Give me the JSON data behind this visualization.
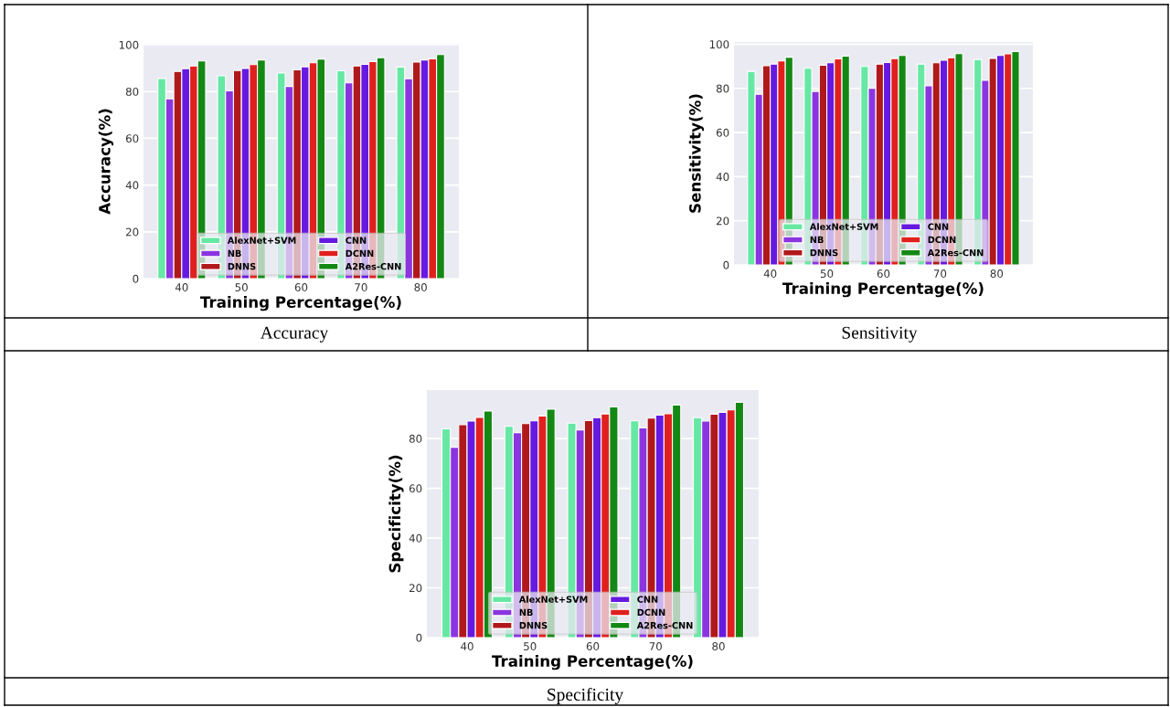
{
  "chart_data": [
    {
      "type": "bar",
      "categories": [
        "40",
        "50",
        "60",
        "70",
        "80"
      ],
      "xlabel": "Training Percentage(%)",
      "ylabel": "Accuracy(%)",
      "ylim": [
        0,
        100.4
      ],
      "yticks": [
        0,
        20,
        40,
        60,
        80,
        100
      ],
      "grid": "y",
      "legend": "bottom",
      "annotations": [
        "Accuracy"
      ],
      "series": [
        {
          "name": "AlexNet+SVM",
          "color": "#66e8a4",
          "values": [
            85.6,
            86.7,
            87.9,
            88.9,
            90.5
          ]
        },
        {
          "name": "NB",
          "color": "#8b35e0",
          "values": [
            76.9,
            80.3,
            82.2,
            83.7,
            85.5
          ]
        },
        {
          "name": "DNNS",
          "color": "#b0191b",
          "values": [
            88.6,
            89.0,
            89.3,
            90.9,
            92.6
          ]
        },
        {
          "name": "CNN",
          "color": "#6619e0",
          "values": [
            89.8,
            89.9,
            90.6,
            91.6,
            93.5
          ]
        },
        {
          "name": "DCNN",
          "color": "#e0201e",
          "values": [
            90.9,
            91.5,
            92.3,
            92.8,
            94.0
          ]
        },
        {
          "name": "A2Res-CNN",
          "color": "#148814",
          "values": [
            93.1,
            93.5,
            93.9,
            94.5,
            95.8
          ]
        }
      ]
    },
    {
      "type": "bar",
      "categories": [
        "40",
        "50",
        "60",
        "70",
        "80"
      ],
      "xlabel": "Training Percentage(%)",
      "ylabel": "Sensitivity(%)",
      "ylim": [
        0,
        101
      ],
      "yticks": [
        0,
        20,
        40,
        60,
        80,
        100
      ],
      "grid": "y",
      "legend": "bottom",
      "annotations": [
        "Sensitivity"
      ],
      "series": [
        {
          "name": "AlexNet+SVM",
          "color": "#66e8a4",
          "values": [
            87.7,
            89.1,
            89.9,
            91.0,
            93.1
          ]
        },
        {
          "name": "NB",
          "color": "#8b35e0",
          "values": [
            77.3,
            78.6,
            80.0,
            81.2,
            83.6
          ]
        },
        {
          "name": "DNNS",
          "color": "#b0191b",
          "values": [
            90.3,
            90.5,
            91.0,
            91.6,
            93.6
          ]
        },
        {
          "name": "CNN",
          "color": "#6619e0",
          "values": [
            91.0,
            91.6,
            91.7,
            92.7,
            94.9
          ]
        },
        {
          "name": "DCNN",
          "color": "#e0201e",
          "values": [
            92.4,
            93.4,
            93.5,
            93.9,
            95.6
          ]
        },
        {
          "name": "A2Res-CNN",
          "color": "#148814",
          "values": [
            94.1,
            94.6,
            94.9,
            95.7,
            96.7
          ]
        }
      ]
    },
    {
      "type": "bar",
      "categories": [
        "40",
        "50",
        "60",
        "70",
        "80"
      ],
      "xlabel": "Training Percentage(%)",
      "ylabel": "Specificity(%)",
      "ylim": [
        0,
        99.5
      ],
      "yticks": [
        0,
        20,
        40,
        60,
        80
      ],
      "grid": "y",
      "legend": "bottom",
      "annotations": [
        "Specificity"
      ],
      "series": [
        {
          "name": "AlexNet+SVM",
          "color": "#66e8a4",
          "values": [
            83.9,
            84.9,
            86.2,
            87.1,
            88.4
          ]
        },
        {
          "name": "NB",
          "color": "#8b35e0",
          "values": [
            76.5,
            82.4,
            83.5,
            84.3,
            87.0
          ]
        },
        {
          "name": "DNNS",
          "color": "#b0191b",
          "values": [
            85.6,
            86.0,
            87.2,
            88.2,
            89.8
          ]
        },
        {
          "name": "CNN",
          "color": "#6619e0",
          "values": [
            87.0,
            87.1,
            88.4,
            89.4,
            90.5
          ]
        },
        {
          "name": "DCNN",
          "color": "#e0201e",
          "values": [
            88.5,
            89.1,
            89.9,
            90.0,
            91.5
          ]
        },
        {
          "name": "A2Res-CNN",
          "color": "#148814",
          "values": [
            91.1,
            91.8,
            92.7,
            93.5,
            94.6
          ]
        }
      ]
    }
  ]
}
